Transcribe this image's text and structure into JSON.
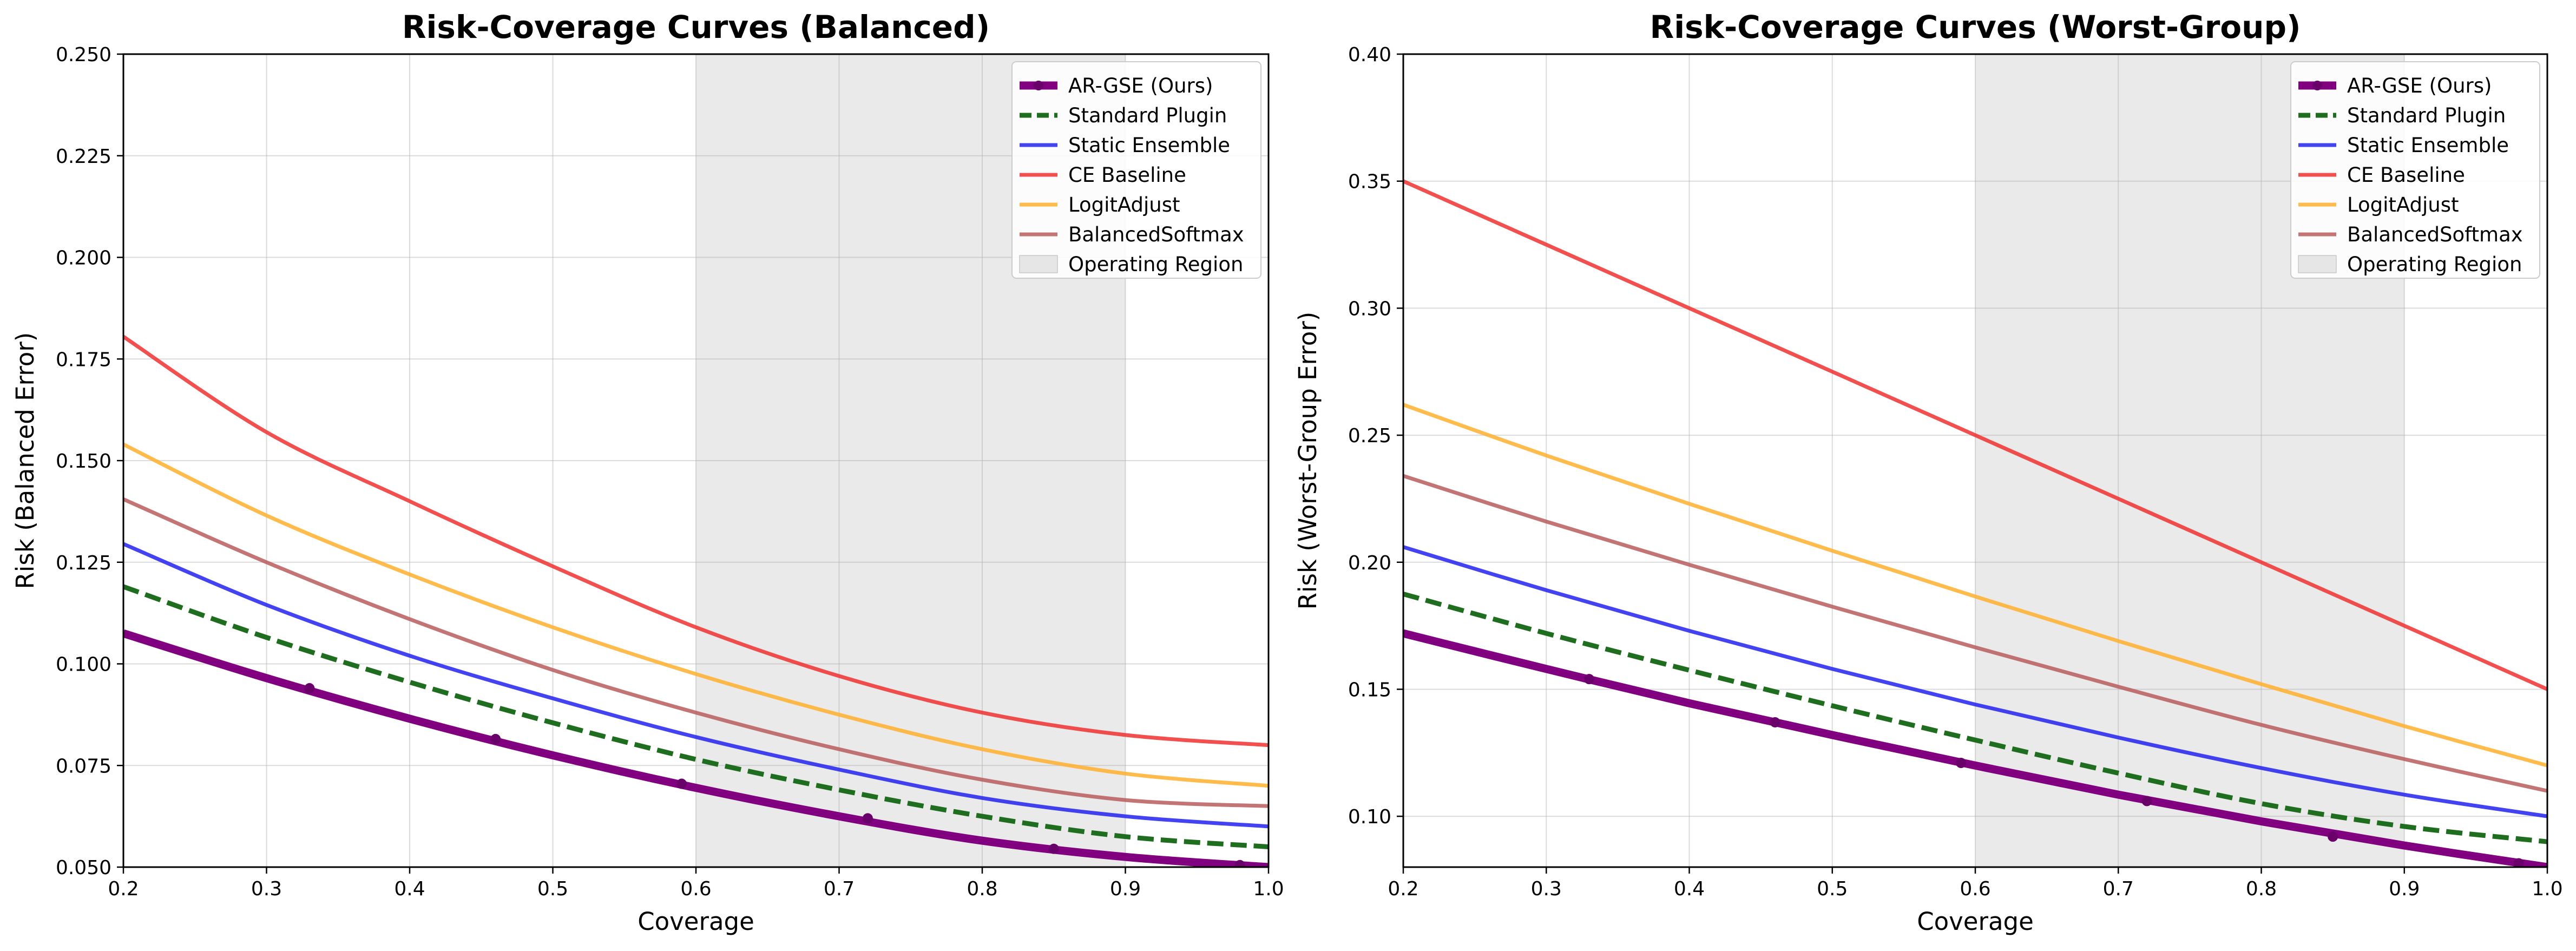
{
  "chart_data": [
    {
      "type": "line",
      "title": "Risk-Coverage Curves (Balanced)",
      "xlabel": "Coverage",
      "ylabel": "Risk (Balanced Error)",
      "xlim": [
        0.2,
        1.0
      ],
      "ylim": [
        0.05,
        0.25
      ],
      "xticks": [
        "0.2",
        "0.3",
        "0.4",
        "0.5",
        "0.6",
        "0.7",
        "0.8",
        "0.9",
        "1.0"
      ],
      "yticks": [
        "0.050",
        "0.075",
        "0.100",
        "0.125",
        "0.150",
        "0.175",
        "0.200",
        "0.225",
        "0.250"
      ],
      "grid": true,
      "legend_position": "top-right",
      "shaded_region": {
        "label": "Operating Region",
        "x_range": [
          0.6,
          0.9
        ],
        "color": "#e6e6e6"
      },
      "x": [
        0.2,
        0.3,
        0.4,
        0.5,
        0.6,
        0.7,
        0.8,
        0.9,
        1.0
      ],
      "series": [
        {
          "name": "AR-GSE (Ours)",
          "color": "#800080",
          "style": "solid-thick-markers",
          "values": [
            0.1075,
            0.0965,
            0.0865,
            0.0775,
            0.0695,
            0.0625,
            0.0565,
            0.0525,
            0.05
          ],
          "markers": [
            [
              0.33,
              0.094
            ],
            [
              0.46,
              0.0815
            ],
            [
              0.59,
              0.0705
            ],
            [
              0.72,
              0.062
            ],
            [
              0.85,
              0.0545
            ],
            [
              0.98,
              0.0505
            ]
          ]
        },
        {
          "name": "Standard Plugin",
          "color": "#1f6e1f",
          "style": "dashed",
          "values": [
            0.119,
            0.1065,
            0.0955,
            0.0855,
            0.0765,
            0.069,
            0.0625,
            0.0575,
            0.055
          ]
        },
        {
          "name": "Static Ensemble",
          "color": "#2222ee",
          "style": "solid",
          "values": [
            0.1295,
            0.1145,
            0.102,
            0.0915,
            0.082,
            0.074,
            0.067,
            0.0625,
            0.06
          ]
        },
        {
          "name": "CE Baseline",
          "color": "#f03030",
          "style": "solid",
          "values": [
            0.1805,
            0.157,
            0.14,
            0.124,
            0.109,
            0.097,
            0.088,
            0.0825,
            0.08
          ]
        },
        {
          "name": "LogitAdjust",
          "color": "#ffb02e",
          "style": "solid",
          "values": [
            0.154,
            0.1365,
            0.122,
            0.109,
            0.0975,
            0.0875,
            0.079,
            0.073,
            0.07
          ]
        },
        {
          "name": "BalancedSoftmax",
          "color": "#b85c5c",
          "style": "solid",
          "values": [
            0.1405,
            0.125,
            0.111,
            0.0985,
            0.088,
            0.079,
            0.0715,
            0.0665,
            0.065
          ]
        }
      ]
    },
    {
      "type": "line",
      "title": "Risk-Coverage Curves (Worst-Group)",
      "xlabel": "Coverage",
      "ylabel": "Risk (Worst-Group Error)",
      "xlim": [
        0.2,
        1.0
      ],
      "ylim": [
        0.08,
        0.4
      ],
      "xticks": [
        "0.2",
        "0.3",
        "0.4",
        "0.5",
        "0.6",
        "0.7",
        "0.8",
        "0.9",
        "1.0"
      ],
      "yticks": [
        "0.10",
        "0.15",
        "0.20",
        "0.25",
        "0.30",
        "0.35",
        "0.40"
      ],
      "grid": true,
      "legend_position": "top-right",
      "shaded_region": {
        "label": "Operating Region",
        "x_range": [
          0.6,
          0.9
        ],
        "color": "#e6e6e6"
      },
      "x": [
        0.2,
        0.3,
        0.4,
        0.5,
        0.6,
        0.7,
        0.8,
        0.9,
        1.0
      ],
      "series": [
        {
          "name": "AR-GSE (Ours)",
          "color": "#800080",
          "style": "solid-thick-markers",
          "values": [
            0.172,
            0.158,
            0.1445,
            0.132,
            0.12,
            0.1085,
            0.098,
            0.0885,
            0.08
          ],
          "markers": [
            [
              0.33,
              0.154
            ],
            [
              0.46,
              0.137
            ],
            [
              0.59,
              0.121
            ],
            [
              0.72,
              0.106
            ],
            [
              0.85,
              0.092
            ],
            [
              0.98,
              0.0815
            ]
          ]
        },
        {
          "name": "Standard Plugin",
          "color": "#1f6e1f",
          "style": "dashed",
          "values": [
            0.1875,
            0.172,
            0.1575,
            0.1435,
            0.13,
            0.117,
            0.105,
            0.096,
            0.09
          ]
        },
        {
          "name": "Static Ensemble",
          "color": "#2222ee",
          "style": "solid",
          "values": [
            0.206,
            0.189,
            0.173,
            0.158,
            0.144,
            0.131,
            0.119,
            0.1085,
            0.1
          ]
        },
        {
          "name": "CE Baseline",
          "color": "#f03030",
          "style": "solid",
          "values": [
            0.35,
            0.325,
            0.3,
            0.275,
            0.25,
            0.225,
            0.2,
            0.175,
            0.15
          ]
        },
        {
          "name": "LogitAdjust",
          "color": "#ffb02e",
          "style": "solid",
          "values": [
            0.262,
            0.242,
            0.223,
            0.2045,
            0.1865,
            0.169,
            0.152,
            0.1355,
            0.12
          ]
        },
        {
          "name": "BalancedSoftmax",
          "color": "#b85c5c",
          "style": "solid",
          "values": [
            0.234,
            0.216,
            0.199,
            0.1825,
            0.1665,
            0.151,
            0.136,
            0.1225,
            0.11
          ]
        }
      ]
    }
  ]
}
